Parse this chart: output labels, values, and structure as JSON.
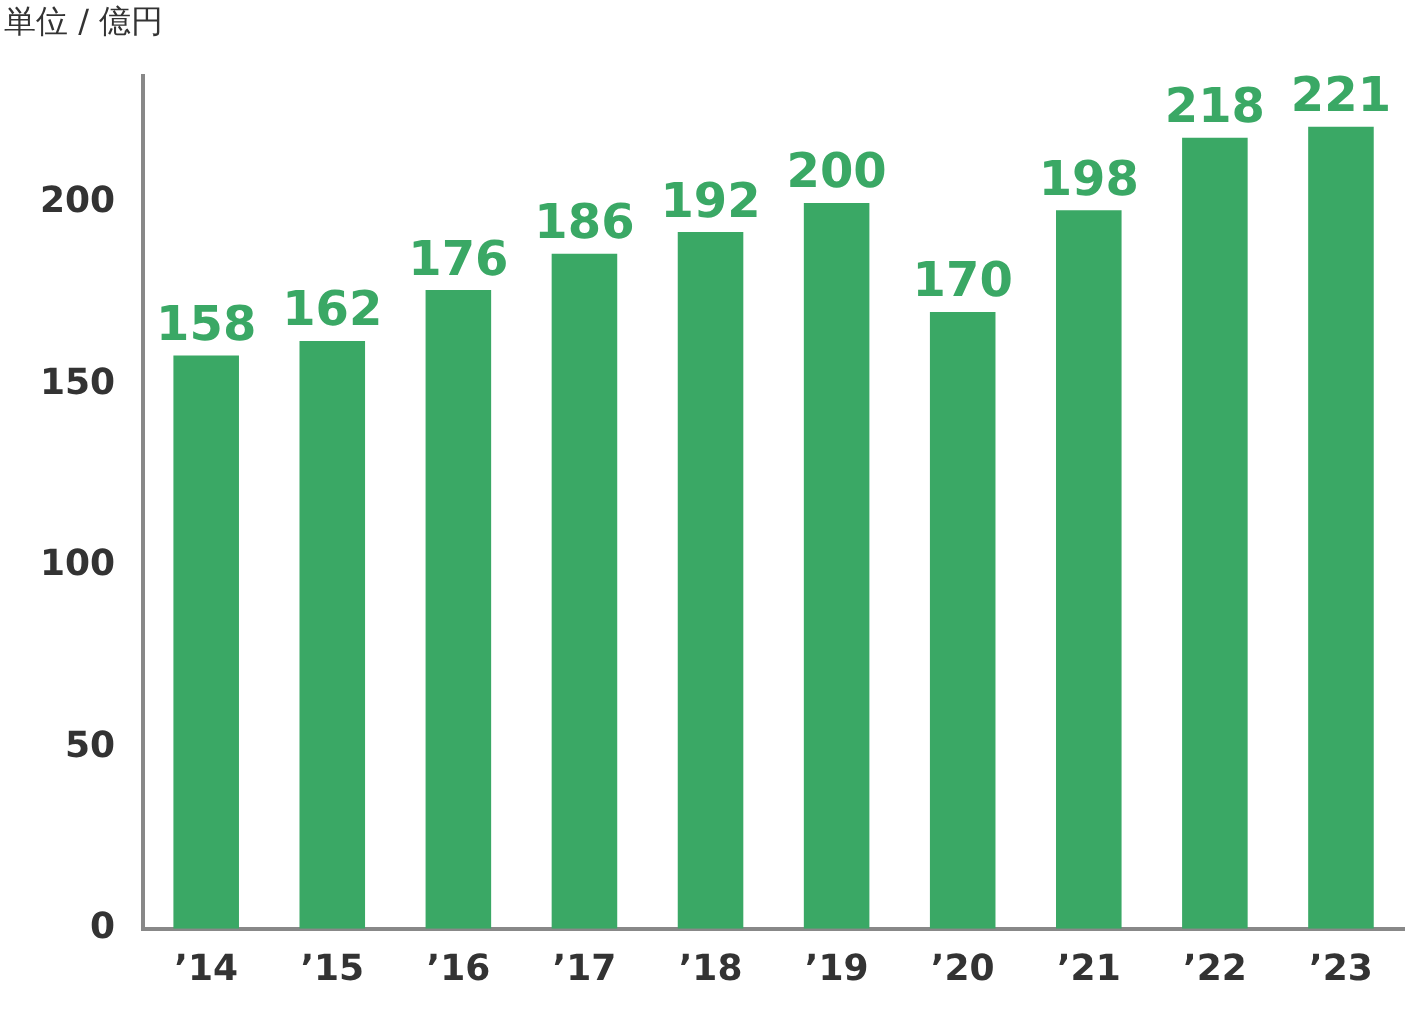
{
  "chart_data": {
    "type": "bar",
    "ylabel": "単位 / 億円",
    "categories": [
      "’14",
      "’15",
      "’16",
      "’17",
      "’18",
      "’19",
      "’20",
      "’21",
      "’22",
      "’23"
    ],
    "values": [
      158,
      162,
      176,
      186,
      192,
      200,
      170,
      198,
      218,
      221
    ],
    "color": "#3aa865",
    "ylim": [
      0,
      235
    ],
    "yticks": [
      0,
      50,
      100,
      150,
      200
    ],
    "grid": false,
    "legend": false,
    "data_labels": true
  }
}
